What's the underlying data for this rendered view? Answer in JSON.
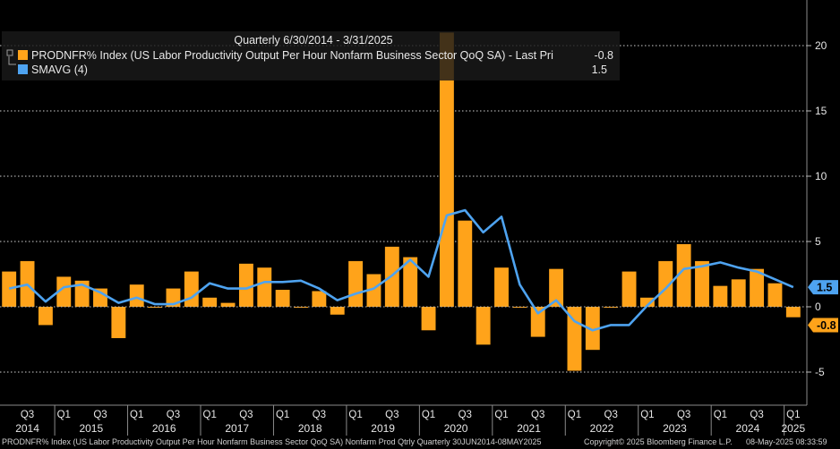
{
  "legend": {
    "header": "Quarterly 6/30/2014 - 3/31/2025",
    "series1_label": "PRODNFR% Index (US Labor Productivity Output Per Hour Nonfarm Business Sector QoQ SA) - Last Pri",
    "series1_last": "-0.8",
    "series2_label": "SMAVG (4)",
    "series2_last": "1.5"
  },
  "last_tags": {
    "smavg": "1.5",
    "bars": "-0.8"
  },
  "footer": {
    "left": "PRODNFR% Index (US Labor Productivity Output Per Hour Nonfarm Business Sector QoQ SA) Nonfarm Prod Qtrly  Quarterly 30JUN2014-08MAY2025",
    "middle": "Copyright© 2025 Bloomberg Finance L.P.",
    "right": "08-May-2025 08:33:59"
  },
  "chart_data": {
    "type": "bar",
    "colors": {
      "bars": "#ffa31a",
      "line": "#4ea3f0",
      "background": "#000000",
      "grid": "#cfcfcf",
      "tag_smavg": "#4ea3f0",
      "tag_bars": "#ffa31a"
    },
    "x": [
      "2014Q2",
      "2014Q3",
      "2014Q4",
      "2015Q1",
      "2015Q2",
      "2015Q3",
      "2015Q4",
      "2016Q1",
      "2016Q2",
      "2016Q3",
      "2016Q4",
      "2017Q1",
      "2017Q2",
      "2017Q3",
      "2017Q4",
      "2018Q1",
      "2018Q2",
      "2018Q3",
      "2018Q4",
      "2019Q1",
      "2019Q2",
      "2019Q3",
      "2019Q4",
      "2020Q1",
      "2020Q2",
      "2020Q3",
      "2020Q4",
      "2021Q1",
      "2021Q2",
      "2021Q3",
      "2021Q4",
      "2022Q1",
      "2022Q2",
      "2022Q3",
      "2022Q4",
      "2023Q1",
      "2023Q2",
      "2023Q3",
      "2023Q4",
      "2024Q1",
      "2024Q2",
      "2024Q3",
      "2024Q4",
      "2025Q1"
    ],
    "series": [
      {
        "type": "bar",
        "values": [
          2.7,
          3.5,
          -1.4,
          2.3,
          2.0,
          1.4,
          -2.4,
          1.7,
          0.0,
          1.4,
          2.7,
          0.7,
          0.3,
          3.3,
          3.0,
          1.3,
          0.0,
          1.2,
          -0.6,
          3.5,
          2.5,
          4.6,
          3.8,
          -1.8,
          21.0,
          6.6,
          -2.9,
          3.0,
          0.0,
          -2.3,
          2.9,
          -4.9,
          -3.3,
          0.0,
          2.7,
          0.7,
          3.5,
          4.8,
          3.5,
          1.6,
          2.1,
          2.9,
          1.8,
          -0.8
        ]
      },
      {
        "type": "line",
        "values": [
          1.4,
          1.7,
          0.4,
          1.5,
          1.7,
          1.1,
          0.3,
          0.7,
          0.2,
          0.2,
          0.7,
          1.8,
          1.4,
          1.4,
          1.9,
          1.9,
          2.0,
          1.4,
          0.5,
          1.0,
          1.4,
          2.4,
          3.6,
          2.3,
          7.0,
          7.4,
          5.7,
          6.9,
          1.7,
          -0.5,
          0.5,
          -1.1,
          -1.8,
          -1.4,
          -1.4,
          0.1,
          1.4,
          2.9,
          3.1,
          3.4,
          3.0,
          2.7,
          2.1,
          1.5
        ]
      }
    ],
    "y_ticks": [
      20,
      15,
      10,
      5,
      0,
      -5
    ],
    "ylim": [
      -7,
      23
    ],
    "x_quarter_labels": [
      "Q3",
      "Q1",
      "Q3",
      "Q1",
      "Q3",
      "Q1",
      "Q3",
      "Q1",
      "Q3",
      "Q1",
      "Q3",
      "Q1",
      "Q3",
      "Q1",
      "Q3",
      "Q1",
      "Q3",
      "Q1",
      "Q3",
      "Q1",
      "Q3",
      "Q1"
    ],
    "x_years": [
      "2014",
      "2015",
      "2016",
      "2017",
      "2018",
      "2019",
      "2020",
      "2021",
      "2022",
      "2023",
      "2024",
      "2025"
    ],
    "grid": true,
    "legend_position": "top-left"
  }
}
